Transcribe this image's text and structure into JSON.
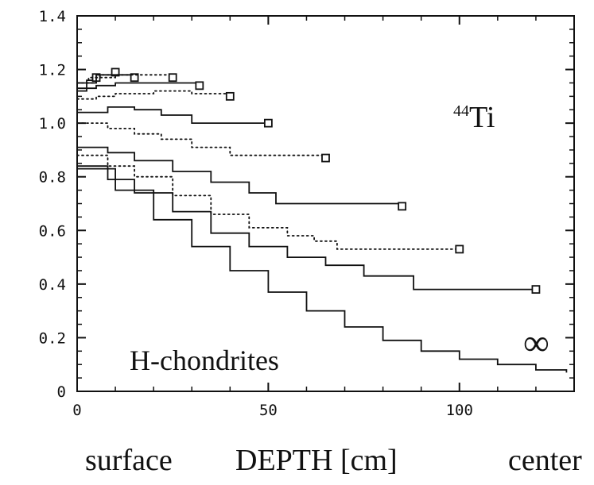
{
  "chart_data": {
    "type": "line",
    "title": "",
    "xlabel": "DEPTH [cm]",
    "xlabel_left": "surface",
    "xlabel_right": "center",
    "ylabel": "",
    "xlim": [
      0,
      130
    ],
    "ylim": [
      0,
      1.4
    ],
    "x_ticks": [
      0,
      50,
      100
    ],
    "y_ticks": [
      0,
      0.2,
      0.4,
      0.6,
      0.8,
      1.0,
      1.2,
      1.4
    ],
    "y_tick_labels": [
      "0",
      "0.2",
      "0.4",
      "0.6",
      "0.8",
      "1.0",
      "1.2",
      "1.4"
    ],
    "grid": false,
    "annotations": {
      "isotope_mass": "44",
      "isotope_symbol": "Ti",
      "class_label": "H-chondrites",
      "infinity_label": "∞"
    },
    "series": [
      {
        "style": "solid",
        "marker": true,
        "points": [
          [
            0,
            1.12
          ],
          [
            2.5,
            1.16
          ],
          [
            5,
            1.17
          ]
        ]
      },
      {
        "style": "dotted",
        "marker": true,
        "points": [
          [
            0,
            1.15
          ],
          [
            3,
            1.17
          ],
          [
            6,
            1.18
          ],
          [
            10,
            1.19
          ]
        ]
      },
      {
        "style": "solid",
        "marker": true,
        "points": [
          [
            0,
            1.15
          ],
          [
            5,
            1.18
          ],
          [
            10,
            1.18
          ],
          [
            15,
            1.17
          ]
        ]
      },
      {
        "style": "dotted",
        "marker": true,
        "points": [
          [
            0,
            1.15
          ],
          [
            5,
            1.17
          ],
          [
            10,
            1.18
          ],
          [
            18,
            1.18
          ],
          [
            25,
            1.17
          ]
        ]
      },
      {
        "style": "solid",
        "marker": true,
        "points": [
          [
            0,
            1.13
          ],
          [
            5,
            1.14
          ],
          [
            10,
            1.15
          ],
          [
            20,
            1.15
          ],
          [
            32,
            1.14
          ]
        ]
      },
      {
        "style": "dotted",
        "marker": true,
        "points": [
          [
            0,
            1.09
          ],
          [
            5,
            1.1
          ],
          [
            10,
            1.11
          ],
          [
            20,
            1.12
          ],
          [
            30,
            1.11
          ],
          [
            40,
            1.1
          ]
        ]
      },
      {
        "style": "solid",
        "marker": true,
        "points": [
          [
            0,
            1.04
          ],
          [
            8,
            1.06
          ],
          [
            15,
            1.05
          ],
          [
            22,
            1.03
          ],
          [
            30,
            1.0
          ],
          [
            50,
            1.0
          ]
        ]
      },
      {
        "style": "dotted",
        "marker": true,
        "points": [
          [
            0,
            1.0
          ],
          [
            8,
            0.98
          ],
          [
            15,
            0.96
          ],
          [
            22,
            0.94
          ],
          [
            30,
            0.91
          ],
          [
            40,
            0.88
          ],
          [
            65,
            0.87
          ]
        ]
      },
      {
        "style": "solid",
        "marker": true,
        "points": [
          [
            0,
            0.91
          ],
          [
            8,
            0.89
          ],
          [
            15,
            0.86
          ],
          [
            25,
            0.82
          ],
          [
            35,
            0.78
          ],
          [
            45,
            0.74
          ],
          [
            52,
            0.7
          ],
          [
            85,
            0.69
          ]
        ]
      },
      {
        "style": "dotted",
        "marker": true,
        "points": [
          [
            0,
            0.88
          ],
          [
            8,
            0.84
          ],
          [
            15,
            0.8
          ],
          [
            25,
            0.73
          ],
          [
            35,
            0.66
          ],
          [
            45,
            0.61
          ],
          [
            55,
            0.58
          ],
          [
            62,
            0.56
          ],
          [
            68,
            0.53
          ],
          [
            100,
            0.53
          ]
        ]
      },
      {
        "style": "solid",
        "marker": true,
        "points": [
          [
            0,
            0.84
          ],
          [
            8,
            0.79
          ],
          [
            15,
            0.74
          ],
          [
            25,
            0.67
          ],
          [
            35,
            0.59
          ],
          [
            45,
            0.54
          ],
          [
            55,
            0.5
          ],
          [
            65,
            0.47
          ],
          [
            75,
            0.43
          ],
          [
            88,
            0.38
          ],
          [
            120,
            0.38
          ]
        ]
      },
      {
        "style": "solid",
        "marker": false,
        "label": "∞",
        "points": [
          [
            0,
            0.83
          ],
          [
            10,
            0.75
          ],
          [
            20,
            0.64
          ],
          [
            30,
            0.54
          ],
          [
            40,
            0.45
          ],
          [
            50,
            0.37
          ],
          [
            60,
            0.3
          ],
          [
            70,
            0.24
          ],
          [
            80,
            0.19
          ],
          [
            90,
            0.15
          ],
          [
            100,
            0.12
          ],
          [
            110,
            0.1
          ],
          [
            120,
            0.08
          ],
          [
            128,
            0.07
          ]
        ]
      }
    ]
  }
}
